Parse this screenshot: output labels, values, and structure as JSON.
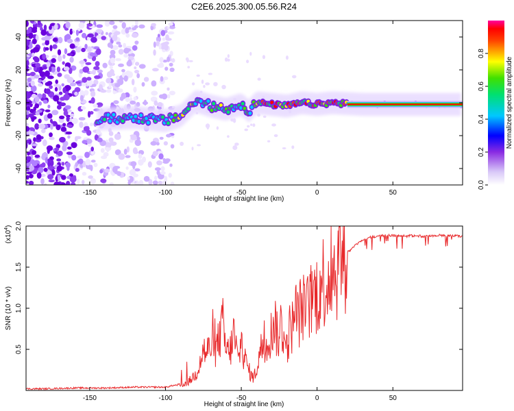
{
  "title": "C2E6.2025.300.05.56.R24",
  "colors": {
    "snr_line": "#e8282a",
    "axis": "#000000",
    "background": "#ffffff"
  },
  "chart_data": [
    {
      "type": "heatmap",
      "name": "spectrogram",
      "xlabel": "Height of straight line (km)",
      "ylabel": "Frequency (Hz)",
      "xlim": [
        -192,
        96
      ],
      "ylim": [
        -50,
        50
      ],
      "x_ticks": [
        -150,
        -100,
        -50,
        0,
        50
      ],
      "y_ticks": [
        -40,
        -20,
        0,
        20,
        40
      ],
      "colorbar": {
        "label": "Normalized spectral amplitude",
        "range": [
          0,
          1
        ],
        "ticks": [
          0.0,
          0.2,
          0.4,
          0.6,
          0.8
        ]
      },
      "ridge": {
        "description_points_km_hz": [
          [
            -145,
            -10
          ],
          [
            -120,
            -9
          ],
          [
            -100,
            -11
          ],
          [
            -90,
            -8
          ],
          [
            -80,
            1
          ],
          [
            -70,
            -2
          ],
          [
            -60,
            -4
          ],
          [
            -50,
            -1
          ],
          [
            -45,
            -5
          ],
          [
            -40,
            0
          ],
          [
            -30,
            -1
          ],
          [
            -20,
            -2
          ],
          [
            -10,
            0
          ],
          [
            0,
            -1
          ],
          [
            10,
            0
          ],
          [
            30,
            -1
          ],
          [
            60,
            -1
          ],
          [
            96,
            -1
          ]
        ],
        "noise_region_km": [
          -192,
          -95
        ]
      }
    },
    {
      "type": "line",
      "name": "snr",
      "xlabel": "Height of straight line (km)",
      "ylabel": "SNR (10 * v/v)",
      "scale_label": "(x10",
      "scale_exponent": "4",
      "xlim": [
        -192,
        96
      ],
      "ylim": [
        0,
        2.0
      ],
      "x_ticks": [
        -150,
        -100,
        -50,
        0,
        50
      ],
      "y_ticks": [
        0.5,
        1.0,
        1.5,
        2.0
      ],
      "y_tick_labels": [
        "0.5",
        "1.0",
        "1.5",
        "2.0"
      ],
      "series": [
        {
          "name": "SNR",
          "x": [
            -192,
            -180,
            -160,
            -140,
            -120,
            -100,
            -95,
            -90,
            -85,
            -80,
            -77,
            -75,
            -73,
            -70,
            -68,
            -65,
            -62,
            -60,
            -57,
            -55,
            -52,
            -50,
            -48,
            -46,
            -44,
            -42,
            -40,
            -38,
            -36,
            -34,
            -32,
            -30,
            -28,
            -26,
            -24,
            -22,
            -20,
            -18,
            -16,
            -14,
            -12,
            -10,
            -8,
            -6,
            -4,
            -2,
            0,
            2,
            4,
            6,
            8,
            10,
            12,
            14,
            16,
            18,
            20,
            22,
            25,
            28,
            30,
            35,
            40,
            45,
            50,
            60,
            70,
            80,
            90,
            96
          ],
          "values": [
            0.01,
            0.01,
            0.02,
            0.02,
            0.03,
            0.03,
            0.05,
            0.06,
            0.1,
            0.2,
            0.35,
            0.5,
            0.45,
            0.55,
            0.4,
            0.6,
            0.8,
            0.45,
            0.5,
            0.7,
            0.35,
            0.6,
            0.4,
            0.3,
            0.2,
            0.15,
            0.25,
            0.45,
            0.55,
            0.5,
            0.65,
            0.7,
            0.9,
            0.6,
            0.8,
            0.7,
            0.5,
            0.75,
            0.8,
            0.95,
            0.9,
            1.05,
            0.95,
            1.0,
            1.1,
            1.15,
            1.2,
            1.25,
            1.35,
            1.3,
            1.4,
            1.5,
            1.45,
            1.55,
            1.6,
            1.65,
            1.7,
            1.72,
            1.78,
            1.82,
            1.85,
            1.88,
            1.89,
            1.9,
            1.9,
            1.9,
            1.89,
            1.9,
            1.9,
            1.89
          ]
        }
      ]
    }
  ]
}
